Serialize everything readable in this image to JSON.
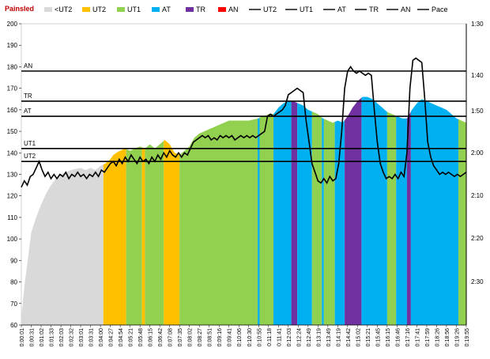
{
  "brand": "Painsled",
  "colors": {
    "below_ut2": "#d9d9d9",
    "ut2": "#ffc000",
    "ut1": "#92d050",
    "at": "#00b0f0",
    "tr": "#7030a0",
    "an": "#ff0000",
    "line": "#000000"
  },
  "legend": [
    {
      "label": "<UT2",
      "type": "box",
      "color": "#d9d9d9"
    },
    {
      "label": "UT2",
      "type": "box",
      "color": "#ffc000"
    },
    {
      "label": "UT1",
      "type": "box",
      "color": "#92d050"
    },
    {
      "label": "AT",
      "type": "box",
      "color": "#00b0f0"
    },
    {
      "label": "TR",
      "type": "box",
      "color": "#7030a0"
    },
    {
      "label": "AN",
      "type": "box",
      "color": "#ff0000"
    },
    {
      "label": "UT2",
      "type": "line",
      "color": "#000000"
    },
    {
      "label": "UT1",
      "type": "line",
      "color": "#000000"
    },
    {
      "label": "AT",
      "type": "line",
      "color": "#000000"
    },
    {
      "label": "TR",
      "type": "line",
      "color": "#000000"
    },
    {
      "label": "AN",
      "type": "line",
      "color": "#000000"
    },
    {
      "label": "Pace",
      "type": "line",
      "color": "#000000"
    }
  ],
  "chart_data": {
    "type": "area",
    "title": "",
    "xlabel": "",
    "ylabel": "",
    "ylim": [
      60,
      200
    ],
    "y_ticks": [
      "200",
      "190",
      "180",
      "170",
      "160",
      "150",
      "140",
      "130",
      "120",
      "110",
      "100",
      "90",
      "80",
      "70",
      "60"
    ],
    "y2_ticks": [
      "1:30",
      "1:40",
      "1:50",
      "2:00",
      "2:10",
      "2:20",
      "2:30"
    ],
    "x_ticks": [
      "0:00:01",
      "0:00:31",
      "0:01:02",
      "0:01:33",
      "0:02:03",
      "0:02:32",
      "0:03:01",
      "0:03:31",
      "0:04:00",
      "0:04:27",
      "0:04:54",
      "0:05:21",
      "0:05:48",
      "0:06:15",
      "0:06:42",
      "0:07:08",
      "0:07:35",
      "0:08:02",
      "0:08:27",
      "0:08:51",
      "0:09:16",
      "0:09:41",
      "0:10:06",
      "0:10:30",
      "0:10:55",
      "0:11:18",
      "0:11:41",
      "0:12:03",
      "0:12:24",
      "0:12:49",
      "0:13:19",
      "0:13:49",
      "0:14:19",
      "0:14:42",
      "0:15:02",
      "0:15:21",
      "0:15:45",
      "0:16:15",
      "0:16:46",
      "0:17:16",
      "0:17:41",
      "0:17:59",
      "0:18:26",
      "0:18:56",
      "0:19:26",
      "0:19:55"
    ],
    "zones": [
      {
        "label": "AN",
        "value": 178
      },
      {
        "label": "TR",
        "value": 164
      },
      {
        "label": "AT",
        "value": 157
      },
      {
        "label": "UT1",
        "value": 142
      },
      {
        "label": "UT2",
        "value": 136
      }
    ],
    "heart_rate": [
      [
        0,
        63
      ],
      [
        0.3,
        78
      ],
      [
        0.7,
        92
      ],
      [
        1,
        103
      ],
      [
        1.5,
        110
      ],
      [
        2,
        116
      ],
      [
        2.5,
        121
      ],
      [
        3,
        125
      ],
      [
        3.5,
        128
      ],
      [
        4,
        130
      ],
      [
        4.5,
        131
      ],
      [
        5,
        132
      ],
      [
        6,
        133
      ],
      [
        6.5,
        132
      ],
      [
        7,
        133
      ],
      [
        7.5,
        132
      ],
      [
        8,
        134
      ],
      [
        8.5,
        135
      ],
      [
        9,
        137
      ],
      [
        9.3,
        139
      ],
      [
        9.6,
        140
      ],
      [
        10,
        141
      ],
      [
        10.5,
        142
      ],
      [
        11,
        141
      ],
      [
        11.5,
        142
      ],
      [
        12,
        143
      ],
      [
        12.5,
        142
      ],
      [
        13,
        144
      ],
      [
        13.5,
        142
      ],
      [
        14,
        144
      ],
      [
        14.5,
        146
      ],
      [
        15,
        144
      ],
      [
        15.5,
        140
      ],
      [
        16,
        139
      ],
      [
        16.5,
        141
      ],
      [
        17,
        143
      ],
      [
        17.5,
        147
      ],
      [
        18,
        149
      ],
      [
        18.5,
        150
      ],
      [
        19,
        151
      ],
      [
        19.5,
        152
      ],
      [
        20,
        153
      ],
      [
        21,
        155
      ],
      [
        22,
        155
      ],
      [
        23,
        155
      ],
      [
        24,
        156
      ],
      [
        24.3,
        157
      ],
      [
        24.6,
        157
      ],
      [
        25,
        158
      ],
      [
        25.5,
        158
      ],
      [
        26,
        161
      ],
      [
        26.5,
        163
      ],
      [
        27,
        164
      ],
      [
        27.5,
        164
      ],
      [
        28,
        163
      ],
      [
        28.5,
        162
      ],
      [
        29,
        160
      ],
      [
        29.5,
        159
      ],
      [
        30,
        158
      ],
      [
        30.5,
        156
      ],
      [
        31,
        155
      ],
      [
        31.5,
        154
      ],
      [
        32,
        155
      ],
      [
        32.5,
        154
      ],
      [
        33,
        157
      ],
      [
        33.5,
        161
      ],
      [
        34,
        164
      ],
      [
        34.5,
        166
      ],
      [
        35,
        166
      ],
      [
        35.5,
        165
      ],
      [
        36,
        163
      ],
      [
        36.5,
        161
      ],
      [
        37,
        159
      ],
      [
        37.5,
        158
      ],
      [
        38,
        157
      ],
      [
        38.5,
        156
      ],
      [
        39,
        156
      ],
      [
        39.5,
        160
      ],
      [
        40,
        163
      ],
      [
        40.5,
        165
      ],
      [
        41,
        164
      ],
      [
        41.5,
        163
      ],
      [
        42,
        162
      ],
      [
        42.5,
        161
      ],
      [
        43,
        160
      ],
      [
        43.5,
        158
      ],
      [
        44,
        156
      ],
      [
        44.5,
        155
      ],
      [
        45,
        154
      ]
    ],
    "pace_y": [
      [
        0,
        124
      ],
      [
        0.3,
        127
      ],
      [
        0.6,
        125
      ],
      [
        0.9,
        129
      ],
      [
        1.2,
        130
      ],
      [
        1.5,
        133
      ],
      [
        1.8,
        136
      ],
      [
        2.1,
        132
      ],
      [
        2.4,
        129
      ],
      [
        2.7,
        131
      ],
      [
        3,
        128
      ],
      [
        3.3,
        130
      ],
      [
        3.6,
        128
      ],
      [
        3.9,
        130
      ],
      [
        4.2,
        129
      ],
      [
        4.5,
        131
      ],
      [
        4.8,
        128
      ],
      [
        5.1,
        130
      ],
      [
        5.4,
        129
      ],
      [
        5.7,
        131
      ],
      [
        6,
        129
      ],
      [
        6.3,
        130
      ],
      [
        6.6,
        128
      ],
      [
        6.9,
        130
      ],
      [
        7.2,
        129
      ],
      [
        7.5,
        131
      ],
      [
        7.8,
        129
      ],
      [
        8.1,
        132
      ],
      [
        8.4,
        131
      ],
      [
        8.7,
        133
      ],
      [
        9,
        135
      ],
      [
        9.3,
        136
      ],
      [
        9.6,
        134
      ],
      [
        9.9,
        137
      ],
      [
        10.2,
        135
      ],
      [
        10.5,
        138
      ],
      [
        10.8,
        136
      ],
      [
        11.1,
        139
      ],
      [
        11.4,
        137
      ],
      [
        11.7,
        135
      ],
      [
        12,
        138
      ],
      [
        12.3,
        136
      ],
      [
        12.6,
        137
      ],
      [
        12.9,
        135
      ],
      [
        13.2,
        138
      ],
      [
        13.5,
        136
      ],
      [
        13.8,
        139
      ],
      [
        14.1,
        137
      ],
      [
        14.4,
        140
      ],
      [
        14.7,
        138
      ],
      [
        15,
        141
      ],
      [
        15.3,
        139
      ],
      [
        15.6,
        138
      ],
      [
        15.9,
        140
      ],
      [
        16.2,
        138
      ],
      [
        16.5,
        140
      ],
      [
        16.8,
        139
      ],
      [
        17.1,
        142
      ],
      [
        17.4,
        145
      ],
      [
        17.7,
        146
      ],
      [
        18,
        147
      ],
      [
        18.3,
        148
      ],
      [
        18.6,
        147
      ],
      [
        18.9,
        148
      ],
      [
        19.2,
        146
      ],
      [
        19.5,
        147
      ],
      [
        19.8,
        146
      ],
      [
        20.1,
        148
      ],
      [
        20.4,
        147
      ],
      [
        20.7,
        148
      ],
      [
        21,
        147
      ],
      [
        21.3,
        148
      ],
      [
        21.6,
        146
      ],
      [
        21.9,
        147
      ],
      [
        22.2,
        148
      ],
      [
        22.5,
        147
      ],
      [
        22.8,
        148
      ],
      [
        23.1,
        147
      ],
      [
        23.4,
        148
      ],
      [
        23.7,
        147
      ],
      [
        24,
        148
      ],
      [
        24.3,
        149
      ],
      [
        24.6,
        150
      ],
      [
        24.9,
        157
      ],
      [
        25.2,
        158
      ],
      [
        25.5,
        157
      ],
      [
        25.8,
        158
      ],
      [
        26.1,
        159
      ],
      [
        26.4,
        160
      ],
      [
        26.7,
        162
      ],
      [
        27,
        167
      ],
      [
        27.3,
        168
      ],
      [
        27.6,
        169
      ],
      [
        27.9,
        170
      ],
      [
        28.2,
        169
      ],
      [
        28.5,
        168
      ],
      [
        28.8,
        155
      ],
      [
        29.1,
        145
      ],
      [
        29.4,
        135
      ],
      [
        29.7,
        131
      ],
      [
        30,
        127
      ],
      [
        30.3,
        126
      ],
      [
        30.6,
        128
      ],
      [
        30.9,
        126
      ],
      [
        31.2,
        129
      ],
      [
        31.5,
        127
      ],
      [
        31.8,
        128
      ],
      [
        32.1,
        135
      ],
      [
        32.4,
        150
      ],
      [
        32.7,
        170
      ],
      [
        33,
        178
      ],
      [
        33.3,
        180
      ],
      [
        33.6,
        178
      ],
      [
        33.9,
        177
      ],
      [
        34.2,
        178
      ],
      [
        34.5,
        177
      ],
      [
        34.8,
        176
      ],
      [
        35.1,
        177
      ],
      [
        35.4,
        176
      ],
      [
        35.7,
        160
      ],
      [
        36,
        145
      ],
      [
        36.3,
        135
      ],
      [
        36.6,
        131
      ],
      [
        36.9,
        128
      ],
      [
        37.2,
        129
      ],
      [
        37.5,
        128
      ],
      [
        37.8,
        130
      ],
      [
        38.1,
        128
      ],
      [
        38.4,
        131
      ],
      [
        38.7,
        129
      ],
      [
        39,
        140
      ],
      [
        39.3,
        170
      ],
      [
        39.6,
        183
      ],
      [
        39.9,
        184
      ],
      [
        40.2,
        183
      ],
      [
        40.5,
        182
      ],
      [
        40.8,
        165
      ],
      [
        41.1,
        145
      ],
      [
        41.4,
        138
      ],
      [
        41.7,
        134
      ],
      [
        42,
        132
      ],
      [
        42.3,
        130
      ],
      [
        42.6,
        131
      ],
      [
        42.9,
        130
      ],
      [
        43.2,
        131
      ],
      [
        43.5,
        130
      ],
      [
        43.8,
        129
      ],
      [
        44.1,
        130
      ],
      [
        44.4,
        129
      ],
      [
        44.7,
        130
      ],
      [
        45,
        131
      ]
    ],
    "segments": [
      {
        "zone": "below_ut2",
        "start": 0,
        "end": 8.3
      },
      {
        "zone": "ut2",
        "start": 8.3,
        "end": 10.6
      },
      {
        "zone": "ut1",
        "start": 10.6,
        "end": 12.2
      },
      {
        "zone": "ut2",
        "start": 12.2,
        "end": 12.5
      },
      {
        "zone": "ut1",
        "start": 12.5,
        "end": 14.4
      },
      {
        "zone": "ut2",
        "start": 14.4,
        "end": 16.0
      },
      {
        "zone": "ut1",
        "start": 16.0,
        "end": 23.9
      },
      {
        "zone": "at",
        "start": 23.9,
        "end": 24.1
      },
      {
        "zone": "ut1",
        "start": 24.1,
        "end": 25.5
      },
      {
        "zone": "at",
        "start": 25.5,
        "end": 27.3
      },
      {
        "zone": "tr",
        "start": 27.3,
        "end": 27.9
      },
      {
        "zone": "at",
        "start": 27.9,
        "end": 29.4
      },
      {
        "zone": "ut1",
        "start": 29.4,
        "end": 30.4
      },
      {
        "zone": "at",
        "start": 30.4,
        "end": 30.6
      },
      {
        "zone": "ut1",
        "start": 30.6,
        "end": 31.7
      },
      {
        "zone": "at",
        "start": 31.7,
        "end": 32.7
      },
      {
        "zone": "tr",
        "start": 32.7,
        "end": 34.4
      },
      {
        "zone": "at",
        "start": 34.4,
        "end": 37.0
      },
      {
        "zone": "ut1",
        "start": 37.0,
        "end": 37.9
      },
      {
        "zone": "at",
        "start": 37.9,
        "end": 39.0
      },
      {
        "zone": "tr",
        "start": 39.0,
        "end": 39.4
      },
      {
        "zone": "at",
        "start": 39.4,
        "end": 44.2
      },
      {
        "zone": "ut1",
        "start": 44.2,
        "end": 45
      }
    ]
  }
}
